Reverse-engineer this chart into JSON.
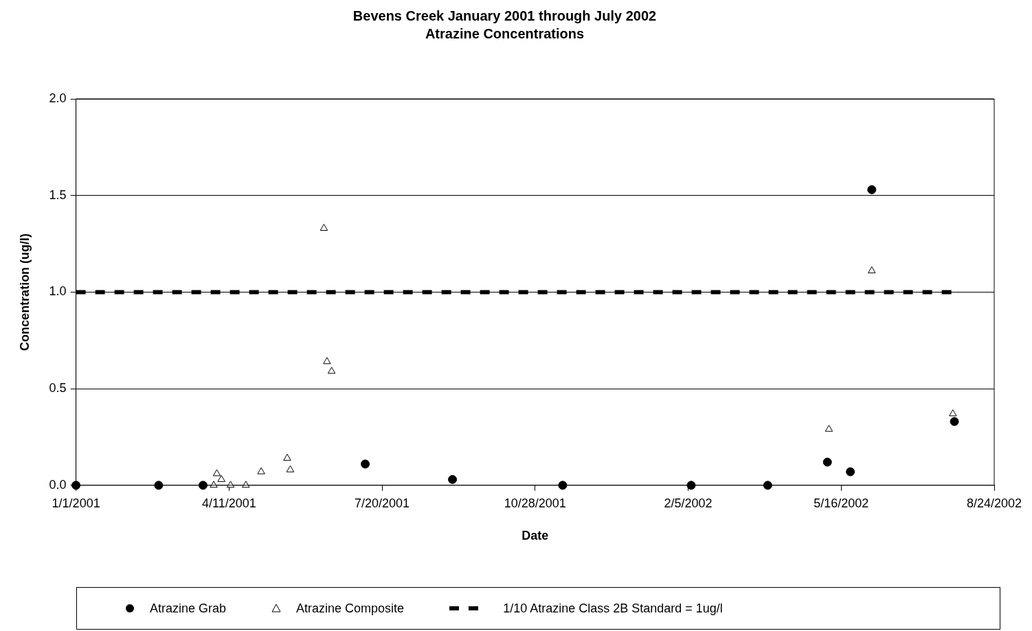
{
  "chart_data": {
    "type": "scatter",
    "title": "Bevens Creek January 2001 through July 2002",
    "subtitle": "Atrazine Concentrations",
    "xlabel": "Date",
    "ylabel": "Concentration (ug/l)",
    "series": [
      {
        "name": "Atrazine Grab",
        "type": "scatter",
        "marker": "circle",
        "color": "#000000",
        "x": [
          "2001-01-01",
          "2001-02-24",
          "2001-03-25",
          "2001-07-09",
          "2001-09-04",
          "2001-11-15",
          "2002-02-07",
          "2002-03-29",
          "2002-05-07",
          "2002-05-22",
          "2002-06-05",
          "2002-07-29"
        ],
        "values": [
          0,
          0,
          0,
          0.11,
          0.03,
          0,
          0,
          0,
          0.12,
          0.07,
          1.53,
          0.33
        ]
      },
      {
        "name": "Atrazine Composite",
        "type": "scatter",
        "marker": "triangle",
        "color": "#000000",
        "x": [
          "2001-04-01",
          "2001-04-03",
          "2001-04-06",
          "2001-04-12",
          "2001-04-22",
          "2001-05-02",
          "2001-05-19",
          "2001-05-21",
          "2001-06-12",
          "2001-06-14",
          "2001-06-17",
          "2002-05-08",
          "2002-06-05",
          "2002-07-28"
        ],
        "values": [
          0,
          0.06,
          0.03,
          0,
          0,
          0.07,
          0.14,
          0.08,
          1.33,
          0.64,
          0.59,
          0.29,
          1.11,
          0.37
        ]
      },
      {
        "name": "1/10 Atrazine Class 2B Standard = 1ug/l",
        "type": "line",
        "marker": "none",
        "line_style": "dashed",
        "color": "#000000",
        "x": [
          "2001-01-01",
          "2002-07-28"
        ],
        "values": [
          1,
          1
        ]
      }
    ],
    "xlim": [
      "2001-01-01",
      "2002-08-24"
    ],
    "xticks": [
      {
        "value": "2001-01-01",
        "label": "1/1/2001"
      },
      {
        "value": "2001-04-11",
        "label": "4/11/2001"
      },
      {
        "value": "2001-07-20",
        "label": "7/20/2001"
      },
      {
        "value": "2001-10-28",
        "label": "10/28/2001"
      },
      {
        "value": "2002-02-05",
        "label": "2/5/2002"
      },
      {
        "value": "2002-05-16",
        "label": "5/16/2002"
      },
      {
        "value": "2002-08-24",
        "label": "8/24/2002"
      }
    ],
    "ylim": [
      0,
      2
    ],
    "yticks": [
      {
        "value": 0,
        "label": "0.0"
      },
      {
        "value": 0.5,
        "label": "0.5"
      },
      {
        "value": 1,
        "label": "1.0"
      },
      {
        "value": 1.5,
        "label": "1.5"
      },
      {
        "value": 2,
        "label": "2.0"
      }
    ],
    "grid": "y",
    "legend": "bottom"
  }
}
